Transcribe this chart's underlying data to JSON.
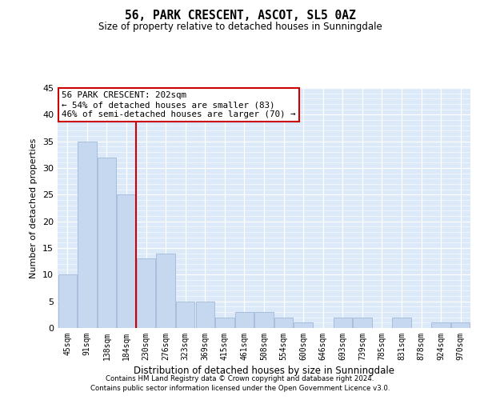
{
  "title": "56, PARK CRESCENT, ASCOT, SL5 0AZ",
  "subtitle": "Size of property relative to detached houses in Sunningdale",
  "xlabel": "Distribution of detached houses by size in Sunningdale",
  "ylabel": "Number of detached properties",
  "categories": [
    "45sqm",
    "91sqm",
    "138sqm",
    "184sqm",
    "230sqm",
    "276sqm",
    "323sqm",
    "369sqm",
    "415sqm",
    "461sqm",
    "508sqm",
    "554sqm",
    "600sqm",
    "646sqm",
    "693sqm",
    "739sqm",
    "785sqm",
    "831sqm",
    "878sqm",
    "924sqm",
    "970sqm"
  ],
  "values": [
    10,
    35,
    32,
    25,
    13,
    14,
    5,
    5,
    2,
    3,
    3,
    2,
    1,
    0,
    2,
    2,
    0,
    2,
    0,
    1,
    1
  ],
  "bar_color": "#c5d8f0",
  "bar_edge_color": "#a0b8d8",
  "vline_x": 3.5,
  "vline_color": "#cc0000",
  "annotation_line1": "56 PARK CRESCENT: 202sqm",
  "annotation_line2": "← 54% of detached houses are smaller (83)",
  "annotation_line3": "46% of semi-detached houses are larger (70) →",
  "annotation_box_color": "#ffffff",
  "annotation_box_edge_color": "#cc0000",
  "ylim": [
    0,
    45
  ],
  "yticks": [
    0,
    5,
    10,
    15,
    20,
    25,
    30,
    35,
    40,
    45
  ],
  "bg_color": "#dce9f8",
  "footer1": "Contains HM Land Registry data © Crown copyright and database right 2024.",
  "footer2": "Contains public sector information licensed under the Open Government Licence v3.0."
}
